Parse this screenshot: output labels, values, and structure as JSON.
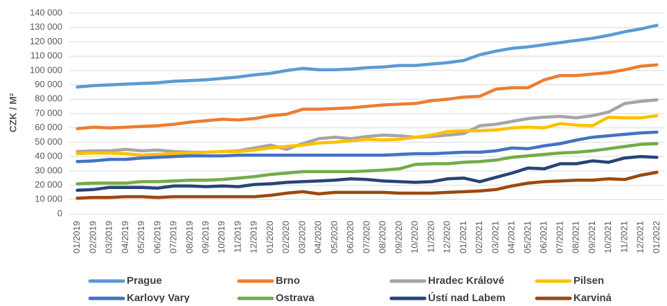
{
  "chart_data": {
    "type": "line",
    "y_label": "CZK / M²",
    "categories": [
      "01/2019",
      "02/2019",
      "03/2019",
      "04/2019",
      "05/2019",
      "06/2019",
      "07/2019",
      "08/2019",
      "09/2019",
      "10/2019",
      "11/2019",
      "12/2019",
      "01/2020",
      "02/2020",
      "03/2020",
      "04/2020",
      "05/2020",
      "06/2020",
      "07/2020",
      "08/2020",
      "09/2020",
      "10/2020",
      "11/2020",
      "12/2020",
      "01/2021",
      "02/2021",
      "03/2021",
      "04/2021",
      "05/2021",
      "06/2021",
      "07/2021",
      "08/2021",
      "09/2021",
      "10/2021",
      "11/2021",
      "12/2021",
      "01/2022"
    ],
    "series": [
      {
        "name": "Prague",
        "color": "#5b9bd5",
        "values": [
          88500,
          89500,
          90000,
          90500,
          91000,
          91500,
          92500,
          93000,
          93500,
          94500,
          95500,
          97000,
          98000,
          100000,
          101500,
          100500,
          100500,
          101000,
          102000,
          102500,
          103500,
          103500,
          104500,
          105500,
          107000,
          111000,
          113500,
          115500,
          116500,
          118000,
          119500,
          121000,
          122500,
          124500,
          127000,
          129000,
          131500
        ]
      },
      {
        "name": "Brno",
        "color": "#ed7d31",
        "values": [
          59500,
          60500,
          60000,
          60500,
          61000,
          61500,
          62500,
          64000,
          65000,
          66000,
          65500,
          66500,
          68500,
          69500,
          73000,
          73000,
          73500,
          74000,
          75000,
          76000,
          76500,
          77000,
          79000,
          80000,
          81500,
          82000,
          87000,
          88000,
          88000,
          93500,
          96500,
          96500,
          97500,
          98500,
          100500,
          103000,
          104000
        ]
      },
      {
        "name": "Hradec Králové",
        "color": "#a5a5a5",
        "values": [
          43500,
          44000,
          44000,
          45000,
          44000,
          44500,
          43500,
          43000,
          43000,
          43500,
          44000,
          46000,
          48000,
          45000,
          49000,
          52500,
          53500,
          52500,
          54000,
          55000,
          54500,
          53500,
          54000,
          55000,
          56000,
          61500,
          62500,
          64500,
          66500,
          67500,
          68000,
          67000,
          68500,
          71000,
          77000,
          78500,
          79500
        ]
      },
      {
        "name": "Pilsen",
        "color": "#ffc000",
        "values": [
          42000,
          42500,
          42500,
          42000,
          41000,
          41500,
          42000,
          42500,
          43000,
          43500,
          43500,
          44500,
          46000,
          47000,
          48000,
          49500,
          50000,
          51000,
          52000,
          51500,
          52000,
          53500,
          55000,
          57500,
          58000,
          58000,
          58500,
          60000,
          60500,
          60000,
          63000,
          62000,
          61500,
          67500,
          67000,
          67000,
          68500
        ]
      },
      {
        "name": "Karlovy Vary",
        "color": "#4472c4",
        "values": [
          36500,
          37000,
          38000,
          38000,
          39000,
          39500,
          40000,
          40500,
          40500,
          40500,
          41000,
          41000,
          41000,
          41000,
          41000,
          41000,
          41000,
          41000,
          41000,
          41000,
          41500,
          42000,
          42000,
          42500,
          43000,
          43000,
          44000,
          46000,
          45500,
          47500,
          49000,
          51500,
          53500,
          54500,
          55500,
          56500,
          57000
        ]
      },
      {
        "name": "Ostrava",
        "color": "#70ad47",
        "values": [
          21000,
          21500,
          21500,
          21500,
          22500,
          22500,
          23000,
          23500,
          23500,
          24000,
          25000,
          26000,
          27500,
          28500,
          29500,
          29500,
          29500,
          29500,
          30000,
          30500,
          31500,
          34500,
          35000,
          35000,
          36000,
          36500,
          37500,
          39500,
          40500,
          41500,
          42500,
          43000,
          44000,
          45500,
          47000,
          48500,
          49000
        ]
      },
      {
        "name": "Ústí nad Labem",
        "color": "#264478",
        "values": [
          16500,
          17000,
          18500,
          18500,
          18500,
          18000,
          19500,
          19500,
          19000,
          19500,
          19000,
          20500,
          21000,
          22000,
          22500,
          23000,
          23500,
          24500,
          24000,
          23000,
          22500,
          22000,
          22500,
          24500,
          25000,
          22500,
          25500,
          28500,
          32000,
          31500,
          35000,
          35000,
          37000,
          36000,
          39000,
          40000,
          39500
        ]
      },
      {
        "name": "Karviná",
        "color": "#9e480e",
        "values": [
          11000,
          11500,
          11500,
          12000,
          12000,
          11500,
          12000,
          12000,
          12000,
          12000,
          12000,
          12000,
          13000,
          14500,
          15500,
          14000,
          15000,
          15000,
          15000,
          15000,
          14500,
          14500,
          14500,
          15000,
          15500,
          16000,
          17000,
          19500,
          21500,
          22500,
          23000,
          23500,
          23500,
          24500,
          24000,
          27000,
          29000
        ]
      }
    ],
    "ylim": [
      0,
      140000
    ],
    "yticks": [
      0,
      {
        "value": 10000,
        "label": "10 000"
      },
      {
        "value": 20000,
        "label": "20 000"
      },
      {
        "value": 30000,
        "label": "30 000"
      },
      {
        "value": 40000,
        "label": "40 000"
      },
      {
        "value": 50000,
        "label": "50 000"
      },
      {
        "value": 60000,
        "label": "60 000"
      },
      {
        "value": 70000,
        "label": "70 000"
      },
      {
        "value": 80000,
        "label": "80 000"
      },
      {
        "value": 90000,
        "label": "90 000"
      },
      {
        "value": 100000,
        "label": "100 000"
      },
      {
        "value": 110000,
        "label": "110 000"
      },
      {
        "value": 120000,
        "label": "120 000"
      },
      {
        "value": 130000,
        "label": "130 000"
      },
      {
        "value": 140000,
        "label": "140 000"
      }
    ],
    "grid": true,
    "legend": "bottom"
  }
}
